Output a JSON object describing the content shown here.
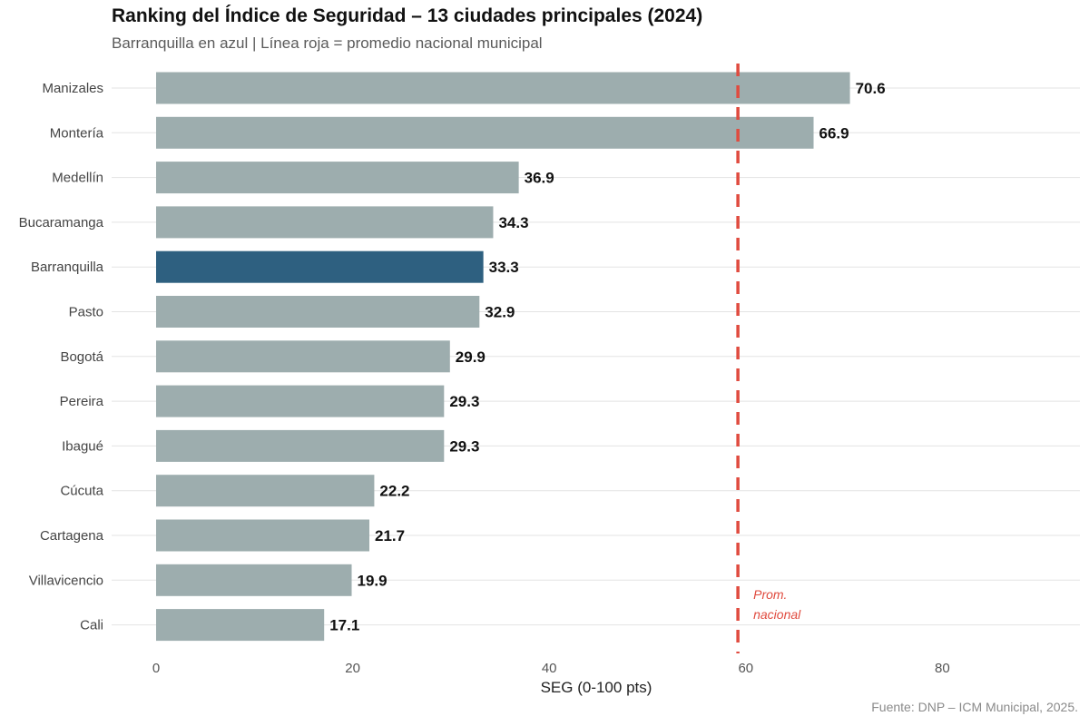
{
  "header": {
    "title": "Ranking del Índice de Seguridad – 13 ciudades principales (2024)",
    "subtitle": "Barranquilla en azul | Línea roja = promedio nacional municipal"
  },
  "footer": {
    "caption": "Fuente: DNP – ICM Municipal, 2025."
  },
  "colors": {
    "bar_default": "#9dadae",
    "bar_highlight": "#2e6080",
    "reference_line": "#e04b3f",
    "gridline": "#e3e3e3"
  },
  "chart_data": {
    "type": "bar",
    "orientation": "horizontal",
    "title": "Ranking del Índice de Seguridad – 13 ciudades principales (2024)",
    "subtitle": "Barranquilla en azul | Línea roja = promedio nacional municipal",
    "xlabel": "SEG (0-100 pts)",
    "ylabel": "",
    "xlim": [
      0,
      94
    ],
    "xticks": [
      0,
      20,
      40,
      60,
      80
    ],
    "xtick_labels": [
      "0",
      "20",
      "40",
      "60",
      "80"
    ],
    "highlight": "Barranquilla",
    "categories": [
      "Manizales",
      "Montería",
      "Medellín",
      "Bucaramanga",
      "Barranquilla",
      "Pasto",
      "Bogotá",
      "Pereira",
      "Ibagué",
      "Cúcuta",
      "Cartagena",
      "Villavicencio",
      "Cali"
    ],
    "values": [
      70.6,
      66.9,
      36.9,
      34.3,
      33.3,
      32.9,
      29.9,
      29.3,
      29.3,
      22.2,
      21.7,
      19.9,
      17.1
    ],
    "value_labels": [
      "70.6",
      "66.9",
      "36.9",
      "34.3",
      "33.3",
      "32.9",
      "29.9",
      "29.3",
      "29.3",
      "22.2",
      "21.7",
      "19.9",
      "17.1"
    ],
    "reference_line": {
      "value": 59.2,
      "label_line1": "Prom.",
      "label_line2": "nacional",
      "style": "dashed"
    },
    "grid": "horizontal only",
    "caption": "Fuente: DNP – ICM Municipal, 2025."
  }
}
